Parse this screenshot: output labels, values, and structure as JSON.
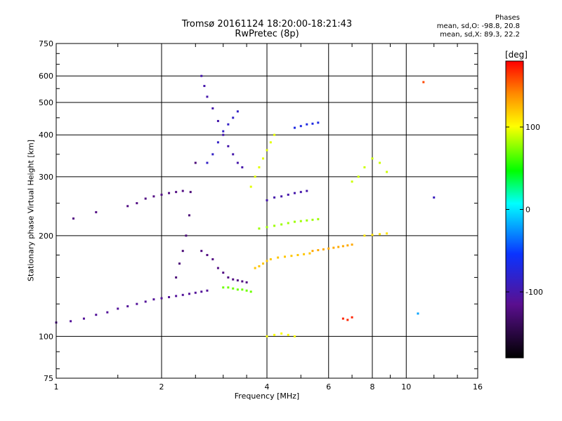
{
  "chart_data": {
    "type": "scatter",
    "title": "Tromsø 20161124 18:20:00-18:21:43",
    "subtitle": "RwPretec (8p)",
    "xlabel": "Frequency [MHz]",
    "ylabel": "Stationary phase Virtual Height [km]",
    "x_scale": "log",
    "y_scale": "log",
    "xlim": [
      1,
      16
    ],
    "ylim": [
      75,
      750
    ],
    "x_ticks": [
      1,
      2,
      4,
      6,
      8,
      10,
      16
    ],
    "y_ticks": [
      75,
      100,
      200,
      300,
      400,
      500,
      600,
      750
    ],
    "grid": true,
    "colorbar": {
      "label": "[deg]",
      "range": [
        -180,
        180
      ],
      "ticks": [
        100,
        0,
        -100
      ]
    },
    "stats": {
      "heading": "Phases",
      "o_line": "mean, sd,O: -98.8, 20.8",
      "x_line": "mean, sd,X:  89.3, 22.2"
    },
    "series": [
      {
        "x": [
          1.0,
          1.1,
          1.2,
          1.3,
          1.4,
          1.5,
          1.6,
          1.7,
          1.8,
          1.9,
          2.0,
          2.1,
          2.2,
          2.3,
          2.4,
          2.5,
          2.6,
          2.7
        ],
        "y": [
          110,
          111,
          113,
          116,
          118,
          121,
          123,
          125,
          127,
          129,
          130,
          131,
          132,
          133,
          134,
          135,
          136,
          137
        ],
        "phase": -110
      },
      {
        "x": [
          1.12,
          1.3,
          1.6,
          1.7,
          1.8,
          1.9,
          2.0,
          2.1,
          2.2,
          2.3
        ],
        "y": [
          225,
          235,
          245,
          250,
          258,
          262,
          265,
          268,
          270,
          272
        ],
        "phase": -120
      },
      {
        "x": [
          2.2,
          2.25,
          2.3,
          2.35,
          2.4,
          2.42,
          2.5
        ],
        "y": [
          150,
          165,
          180,
          200,
          230,
          270,
          330
        ],
        "phase": -125
      },
      {
        "x": [
          2.6,
          2.65,
          2.7,
          2.8,
          2.9,
          3.0,
          3.1,
          3.2,
          3.3,
          3.4
        ],
        "y": [
          600,
          560,
          520,
          480,
          440,
          400,
          370,
          350,
          330,
          320
        ],
        "phase": -100
      },
      {
        "x": [
          2.6,
          2.7,
          2.8,
          2.9,
          3.0,
          3.1,
          3.2,
          3.3,
          3.4,
          3.5
        ],
        "y": [
          180,
          175,
          170,
          160,
          155,
          150,
          148,
          147,
          146,
          145
        ],
        "phase": -120
      },
      {
        "x": [
          2.7,
          2.8,
          2.9,
          3.0,
          3.1,
          3.2,
          3.3
        ],
        "y": [
          330,
          350,
          380,
          410,
          430,
          450,
          470
        ],
        "phase": -85
      },
      {
        "x": [
          3.0,
          3.1,
          3.2,
          3.3,
          3.4,
          3.5,
          3.6
        ],
        "y": [
          140,
          140,
          139,
          138,
          138,
          137,
          136
        ],
        "phase": 70
      },
      {
        "x": [
          3.6,
          3.7,
          3.8,
          3.9,
          4.0,
          4.1,
          4.2
        ],
        "y": [
          280,
          300,
          320,
          340,
          360,
          380,
          400
        ],
        "phase": 95
      },
      {
        "x": [
          3.7,
          3.8,
          3.9,
          4.0,
          4.1,
          4.3,
          4.5,
          4.7,
          4.9,
          5.1,
          5.3
        ],
        "y": [
          160,
          162,
          165,
          168,
          170,
          172,
          173,
          174,
          175,
          176,
          177
        ],
        "phase": 120
      },
      {
        "x": [
          3.8,
          4.0,
          4.2,
          4.4,
          4.6,
          4.8,
          5.0,
          5.2,
          5.4,
          5.6
        ],
        "y": [
          210,
          212,
          214,
          216,
          218,
          220,
          221,
          222,
          223,
          224
        ],
        "phase": 80
      },
      {
        "x": [
          5.4,
          5.6,
          5.8,
          6.0,
          6.2,
          6.4,
          6.6,
          6.8,
          7.0
        ],
        "y": [
          180,
          181,
          182,
          183,
          184,
          185,
          186,
          187,
          188
        ],
        "phase": 130
      },
      {
        "x": [
          4.0,
          4.2,
          4.4,
          4.6,
          4.8,
          5.0,
          5.2
        ],
        "y": [
          255,
          260,
          262,
          265,
          268,
          270,
          272
        ],
        "phase": -100
      },
      {
        "x": [
          4.8,
          5.0,
          5.2,
          5.4,
          5.6
        ],
        "y": [
          420,
          425,
          430,
          432,
          435
        ],
        "phase": -70
      },
      {
        "x": [
          4.0,
          4.2,
          4.4,
          4.6,
          4.8
        ],
        "y": [
          100,
          101,
          102,
          101,
          100
        ],
        "phase": 100
      },
      {
        "x": [
          7.0,
          7.3,
          7.6,
          8.0,
          8.4,
          8.8
        ],
        "y": [
          290,
          300,
          320,
          340,
          330,
          310
        ],
        "phase": 90
      },
      {
        "x": [
          7.6,
          8.0,
          8.4,
          8.8
        ],
        "y": [
          200,
          201,
          202,
          203
        ],
        "phase": 110
      },
      {
        "x": [
          11.2
        ],
        "y": [
          575
        ],
        "phase": 160
      },
      {
        "x": [
          12.0
        ],
        "y": [
          260
        ],
        "phase": -90
      },
      {
        "x": [
          6.6,
          6.8,
          7.0
        ],
        "y": [
          113,
          112,
          114
        ],
        "phase": 170
      },
      {
        "x": [
          10.8
        ],
        "y": [
          117
        ],
        "phase": -20
      }
    ]
  }
}
